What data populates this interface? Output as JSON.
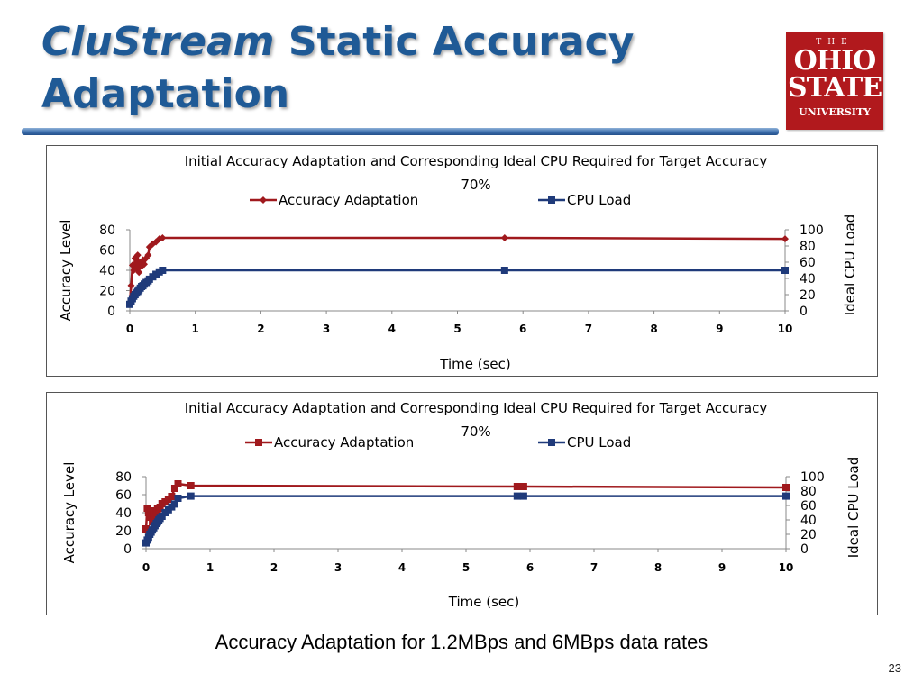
{
  "slide": {
    "title_part1": "CluStream",
    "title_part2": " Static Accuracy",
    "title_line2": "Adaptation",
    "caption": "Accuracy Adaptation for 1.2MBps and 6MBps data rates",
    "page_number": "23"
  },
  "logo": {
    "the": "THE",
    "line1": "OHIO",
    "line2": "STATE",
    "line3": "UNIVERSITY"
  },
  "colors": {
    "accuracy_series_1": "#a0191d",
    "accuracy_series_2": "#a0191d",
    "cpu_series": "#1f3a7a",
    "title_blue": "#1f5a96"
  },
  "chart_data": [
    {
      "type": "line",
      "title_line1": "Initial Accuracy Adaptation and Corresponding Ideal CPU Required for Target Accuracy",
      "title_line2": "70%",
      "xlabel": "Time (sec)",
      "ylabel": "Accuracy Level",
      "y2label": "Ideal CPU Load",
      "xlim": [
        0,
        10
      ],
      "xticks": [
        0,
        1,
        2,
        3,
        4,
        5,
        6,
        7,
        8,
        9,
        10
      ],
      "ylim": [
        0,
        80
      ],
      "yticks": [
        0,
        20,
        40,
        60,
        80
      ],
      "y2lim": [
        0,
        100
      ],
      "y2ticks": [
        0,
        20,
        40,
        60,
        80,
        100
      ],
      "legend_position": "top",
      "grid": false,
      "series": [
        {
          "name": "Accuracy Adaptation",
          "axis": "left",
          "marker": "diamond",
          "points": [
            [
              0,
              8
            ],
            [
              0.02,
              25
            ],
            [
              0.04,
              45
            ],
            [
              0.06,
              40
            ],
            [
              0.08,
              52
            ],
            [
              0.1,
              42
            ],
            [
              0.12,
              55
            ],
            [
              0.14,
              38
            ],
            [
              0.16,
              48
            ],
            [
              0.18,
              44
            ],
            [
              0.2,
              50
            ],
            [
              0.22,
              46
            ],
            [
              0.25,
              52
            ],
            [
              0.28,
              55
            ],
            [
              0.3,
              63
            ],
            [
              0.35,
              66
            ],
            [
              0.4,
              68
            ],
            [
              0.45,
              71
            ],
            [
              0.5,
              72
            ],
            [
              5.72,
              72
            ],
            [
              10,
              71
            ]
          ]
        },
        {
          "name": "CPU Load",
          "axis": "right",
          "marker": "square",
          "points": [
            [
              0,
              8
            ],
            [
              0.02,
              12
            ],
            [
              0.04,
              15
            ],
            [
              0.06,
              18
            ],
            [
              0.08,
              20
            ],
            [
              0.1,
              22
            ],
            [
              0.12,
              24
            ],
            [
              0.14,
              26
            ],
            [
              0.16,
              28
            ],
            [
              0.18,
              30
            ],
            [
              0.2,
              31
            ],
            [
              0.22,
              33
            ],
            [
              0.25,
              35
            ],
            [
              0.28,
              37
            ],
            [
              0.3,
              39
            ],
            [
              0.35,
              42
            ],
            [
              0.4,
              45
            ],
            [
              0.45,
              48
            ],
            [
              0.5,
              50
            ],
            [
              5.72,
              50
            ],
            [
              10,
              50
            ]
          ]
        }
      ]
    },
    {
      "type": "line",
      "title_line1": "Initial Accuracy Adaptation and Corresponding Ideal CPU Required for Target Accuracy",
      "title_line2": "70%",
      "xlabel": "Time (sec)",
      "ylabel": "Accuracy Level",
      "y2label": "Ideal CPU Load",
      "xlim": [
        0,
        10
      ],
      "xticks": [
        0,
        1,
        2,
        3,
        4,
        5,
        6,
        7,
        8,
        9,
        10
      ],
      "ylim": [
        0,
        80
      ],
      "yticks": [
        0,
        20,
        40,
        60,
        80
      ],
      "y2lim": [
        0,
        100
      ],
      "y2ticks": [
        0,
        20,
        40,
        60,
        80,
        100
      ],
      "legend_position": "top",
      "grid": false,
      "series": [
        {
          "name": "Accuracy Adaptation",
          "axis": "left",
          "marker": "square",
          "points": [
            [
              0,
              22
            ],
            [
              0.02,
              45
            ],
            [
              0.04,
              40
            ],
            [
              0.06,
              35
            ],
            [
              0.08,
              42
            ],
            [
              0.1,
              30
            ],
            [
              0.12,
              38
            ],
            [
              0.14,
              40
            ],
            [
              0.16,
              42
            ],
            [
              0.18,
              44
            ],
            [
              0.2,
              45
            ],
            [
              0.22,
              46
            ],
            [
              0.25,
              50
            ],
            [
              0.3,
              52
            ],
            [
              0.35,
              55
            ],
            [
              0.4,
              58
            ],
            [
              0.45,
              67
            ],
            [
              0.5,
              72
            ],
            [
              0.7,
              70
            ],
            [
              5.8,
              69
            ],
            [
              5.9,
              69
            ],
            [
              10,
              68
            ]
          ]
        },
        {
          "name": "CPU Load",
          "axis": "right",
          "marker": "square",
          "points": [
            [
              0,
              8
            ],
            [
              0.02,
              12
            ],
            [
              0.04,
              16
            ],
            [
              0.06,
              20
            ],
            [
              0.08,
              23
            ],
            [
              0.1,
              26
            ],
            [
              0.12,
              29
            ],
            [
              0.14,
              32
            ],
            [
              0.16,
              35
            ],
            [
              0.18,
              37
            ],
            [
              0.2,
              40
            ],
            [
              0.22,
              42
            ],
            [
              0.25,
              45
            ],
            [
              0.3,
              50
            ],
            [
              0.35,
              54
            ],
            [
              0.4,
              58
            ],
            [
              0.45,
              62
            ],
            [
              0.5,
              70
            ],
            [
              0.7,
              73
            ],
            [
              5.8,
              73
            ],
            [
              5.9,
              73
            ],
            [
              10,
              73
            ]
          ]
        }
      ]
    }
  ]
}
